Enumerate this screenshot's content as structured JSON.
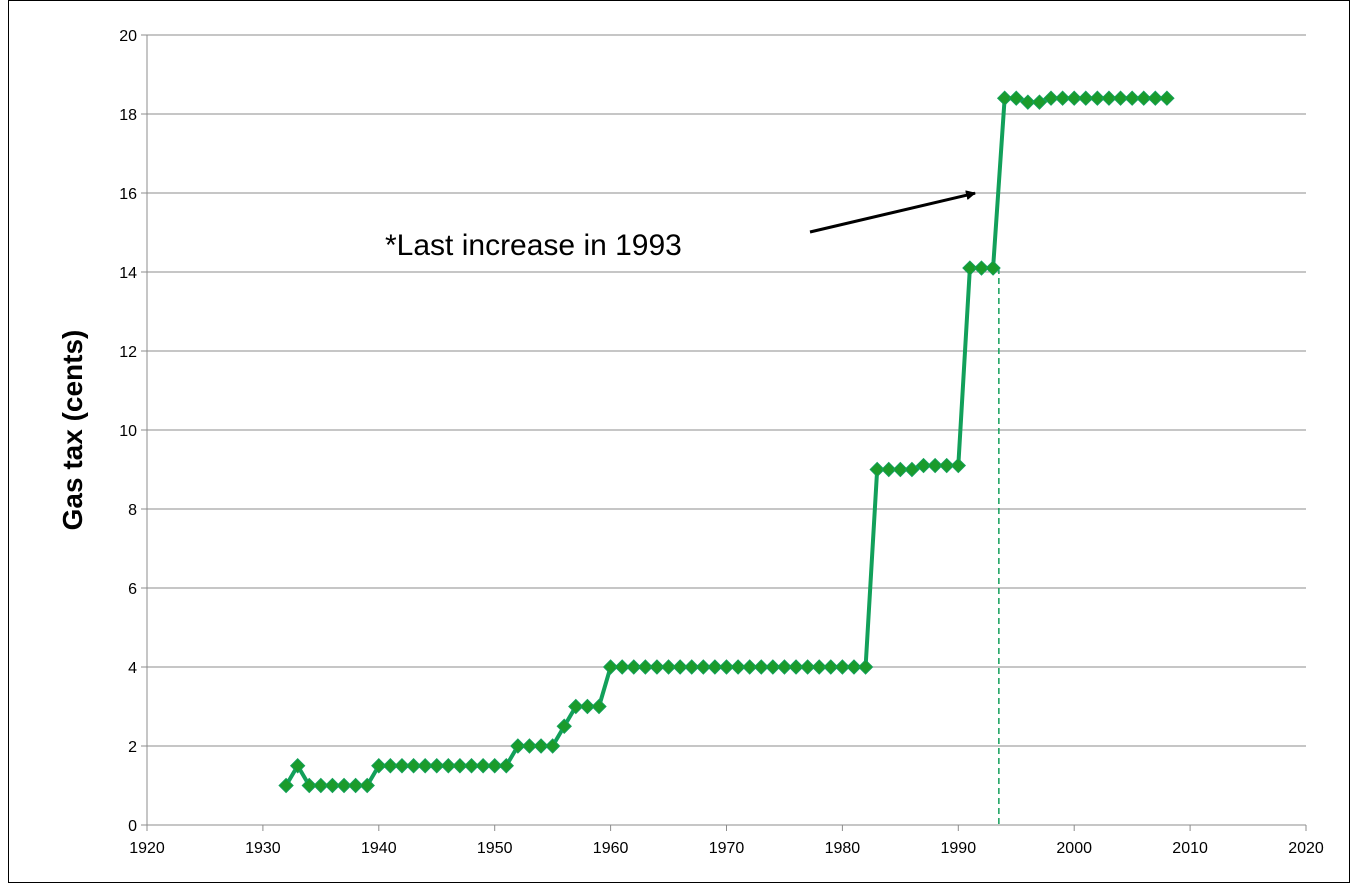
{
  "chart_data": {
    "type": "line",
    "title": "",
    "xlabel": "",
    "ylabel": "Gas tax (cents)",
    "xlim": [
      1920,
      2020
    ],
    "ylim": [
      0,
      20
    ],
    "x_ticks": [
      1920,
      1930,
      1940,
      1950,
      1960,
      1970,
      1980,
      1990,
      2000,
      2010,
      2020
    ],
    "y_ticks": [
      0,
      2,
      4,
      6,
      8,
      10,
      12,
      14,
      16,
      18,
      20
    ],
    "grid": "horizontal",
    "legend": "none",
    "marker": "diamond",
    "series": [
      {
        "color": "#12a05a",
        "marker_color": "#1b9b2b",
        "x": [
          1932,
          1933,
          1934,
          1935,
          1936,
          1937,
          1938,
          1939,
          1940,
          1941,
          1942,
          1943,
          1944,
          1945,
          1946,
          1947,
          1948,
          1949,
          1950,
          1951,
          1952,
          1953,
          1954,
          1955,
          1956,
          1957,
          1958,
          1959,
          1960,
          1961,
          1962,
          1963,
          1964,
          1965,
          1966,
          1967,
          1968,
          1969,
          1970,
          1971,
          1972,
          1973,
          1974,
          1975,
          1976,
          1977,
          1978,
          1979,
          1980,
          1981,
          1982,
          1983,
          1984,
          1985,
          1986,
          1987,
          1988,
          1989,
          1990,
          1991,
          1992,
          1993,
          1994,
          1995,
          1996,
          1997,
          1998,
          1999,
          2000,
          2001,
          2002,
          2003,
          2004,
          2005,
          2006,
          2007,
          2008
        ],
        "values": [
          1,
          1.5,
          1,
          1,
          1,
          1,
          1,
          1,
          1.5,
          1.5,
          1.5,
          1.5,
          1.5,
          1.5,
          1.5,
          1.5,
          1.5,
          1.5,
          1.5,
          1.5,
          2,
          2,
          2,
          2,
          2.5,
          3,
          3,
          3,
          4,
          4,
          4,
          4,
          4,
          4,
          4,
          4,
          4,
          4,
          4,
          4,
          4,
          4,
          4,
          4,
          4,
          4,
          4,
          4,
          4,
          4,
          4,
          9,
          9,
          9,
          9,
          9.1,
          9.1,
          9.1,
          9.1,
          14.1,
          14.1,
          14.1,
          18.4,
          18.4,
          18.3,
          18.3,
          18.4,
          18.4,
          18.4,
          18.4,
          18.4,
          18.4,
          18.4,
          18.4,
          18.4,
          18.4,
          18.4
        ]
      }
    ],
    "annotations": [
      {
        "text": "*Last increase in 1993",
        "arrow_to": {
          "x": 1993,
          "y": 16.3
        }
      }
    ],
    "reference_line": {
      "x": 1993.5,
      "color": "#12a05a",
      "style": "dashed"
    }
  }
}
